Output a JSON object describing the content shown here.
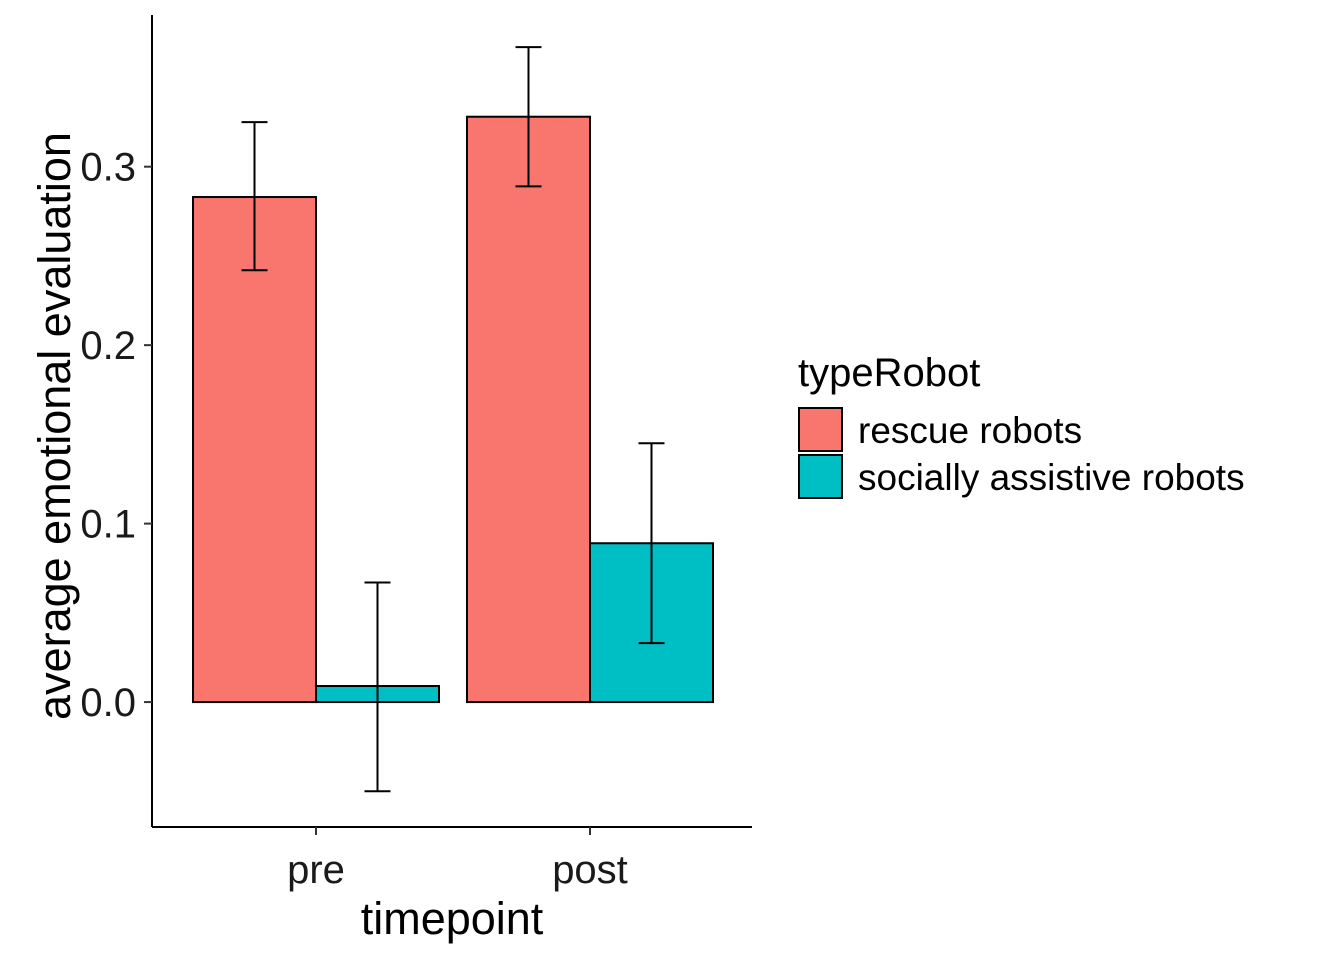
{
  "chart_data": {
    "type": "bar",
    "title": "",
    "xlabel": "timepoint",
    "ylabel": "average emotional evaluation",
    "categories": [
      "pre",
      "post"
    ],
    "ylim": [
      -0.07,
      0.385
    ],
    "yticks": [
      "0.0",
      "0.1",
      "0.2",
      "0.3"
    ],
    "ytick_values": [
      0.0,
      0.1,
      0.2,
      0.3
    ],
    "grid": false,
    "legend": {
      "title": "typeRobot",
      "placement": "right"
    },
    "series": [
      {
        "name": "rescue robots",
        "color": "#F8766D",
        "values": [
          0.283,
          0.328
        ],
        "error_low": [
          0.242,
          0.289
        ],
        "error_high": [
          0.325,
          0.367
        ]
      },
      {
        "name": "socially assistive robots",
        "color": "#00BFC4",
        "values": [
          0.009,
          0.089
        ],
        "error_low": [
          -0.05,
          0.033
        ],
        "error_high": [
          0.067,
          0.145
        ]
      }
    ]
  }
}
